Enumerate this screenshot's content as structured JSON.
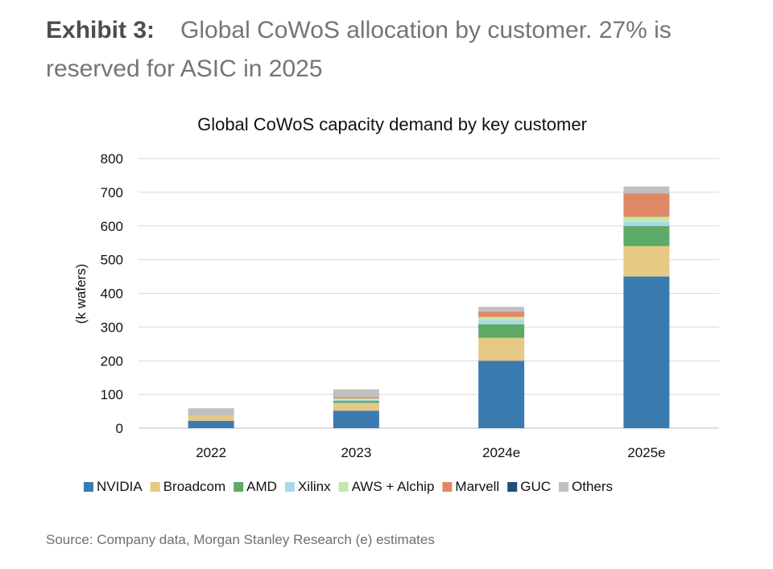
{
  "exhibit": {
    "label": "Exhibit 3:",
    "text": "Global CoWoS allocation by customer. 27% is reserved for ASIC in 2025"
  },
  "source": "Source: Company data, Morgan Stanley Research (e) estimates",
  "chart_data": {
    "type": "bar",
    "stacked": true,
    "title": "Global CoWoS capacity demand by key customer",
    "xlabel": "",
    "ylabel": "(k wafers)",
    "ylim": [
      0,
      800
    ],
    "yticks": [
      0,
      100,
      200,
      300,
      400,
      500,
      600,
      700,
      800
    ],
    "grid": true,
    "legend_position": "bottom",
    "categories": [
      "2022",
      "2023",
      "2024e",
      "2025e"
    ],
    "series": [
      {
        "name": "NVIDIA",
        "color": "#3a7bb0",
        "values": [
          22,
          52,
          200,
          450
        ]
      },
      {
        "name": "Broadcom",
        "color": "#e7c986",
        "values": [
          15,
          23,
          68,
          90
        ]
      },
      {
        "name": "AMD",
        "color": "#5daa68",
        "values": [
          0,
          6,
          40,
          60
        ]
      },
      {
        "name": "Xilinx",
        "color": "#a9d9e6",
        "values": [
          0,
          3,
          12,
          12
        ]
      },
      {
        "name": "AWS + Alchip",
        "color": "#c3e6ad",
        "values": [
          0,
          4,
          10,
          15
        ]
      },
      {
        "name": "Marvell",
        "color": "#e08865",
        "values": [
          0,
          4,
          16,
          70
        ]
      },
      {
        "name": "GUC",
        "color": "#1f4e79",
        "values": [
          0,
          0,
          0,
          0
        ]
      },
      {
        "name": "Others",
        "color": "#c0c0c0",
        "values": [
          22,
          23,
          14,
          20
        ]
      }
    ]
  }
}
